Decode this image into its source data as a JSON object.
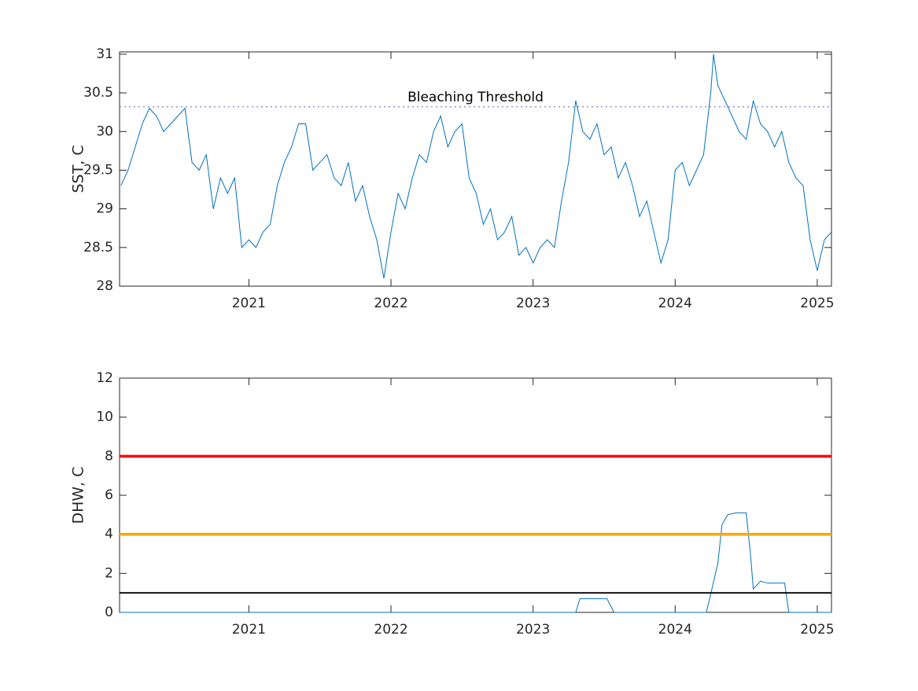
{
  "chart_data": [
    {
      "type": "line",
      "ylabel": "SST, C",
      "xlim": [
        2020.09,
        2025.1
      ],
      "xticks": [
        2021,
        2022,
        2023,
        2024,
        2025
      ],
      "ylim": [
        28,
        31.03
      ],
      "yticks": [
        28,
        28.5,
        29,
        29.5,
        30,
        30.5,
        31
      ],
      "threshold": {
        "value": 30.32,
        "label": "Bleaching Threshold",
        "color": "#7e6fb5"
      },
      "series": [
        {
          "color": "#0072bd",
          "x": [
            2020.1,
            2020.15,
            2020.2,
            2020.25,
            2020.3,
            2020.35,
            2020.4,
            2020.45,
            2020.5,
            2020.55,
            2020.6,
            2020.65,
            2020.7,
            2020.75,
            2020.8,
            2020.85,
            2020.9,
            2020.95,
            2021.0,
            2021.05,
            2021.1,
            2021.15,
            2021.2,
            2021.25,
            2021.3,
            2021.35,
            2021.4,
            2021.45,
            2021.5,
            2021.55,
            2021.6,
            2021.65,
            2021.7,
            2021.75,
            2021.8,
            2021.85,
            2021.9,
            2021.95,
            2022.0,
            2022.05,
            2022.1,
            2022.15,
            2022.2,
            2022.25,
            2022.3,
            2022.35,
            2022.4,
            2022.45,
            2022.5,
            2022.55,
            2022.6,
            2022.65,
            2022.7,
            2022.75,
            2022.8,
            2022.85,
            2022.9,
            2022.95,
            2023.0,
            2023.05,
            2023.1,
            2023.15,
            2023.2,
            2023.25,
            2023.3,
            2023.35,
            2023.4,
            2023.45,
            2023.5,
            2023.55,
            2023.6,
            2023.65,
            2023.7,
            2023.75,
            2023.8,
            2023.85,
            2023.9,
            2023.95,
            2024.0,
            2024.05,
            2024.1,
            2024.15,
            2024.2,
            2024.25,
            2024.27,
            2024.3,
            2024.35,
            2024.4,
            2024.45,
            2024.5,
            2024.55,
            2024.6,
            2024.65,
            2024.7,
            2024.75,
            2024.8,
            2024.85,
            2024.9,
            2024.95,
            2025.0,
            2025.05,
            2025.1
          ],
          "values": [
            29.3,
            29.5,
            29.8,
            30.1,
            30.3,
            30.2,
            30.0,
            30.1,
            30.2,
            30.3,
            29.6,
            29.5,
            29.7,
            29.0,
            29.4,
            29.2,
            29.4,
            28.5,
            28.6,
            28.5,
            28.7,
            28.8,
            29.3,
            29.6,
            29.8,
            30.1,
            30.1,
            29.5,
            29.6,
            29.7,
            29.4,
            29.3,
            29.6,
            29.1,
            29.3,
            28.9,
            28.6,
            28.1,
            28.7,
            29.2,
            29.0,
            29.4,
            29.7,
            29.6,
            30.0,
            30.2,
            29.8,
            30.0,
            30.1,
            29.4,
            29.2,
            28.8,
            29.0,
            28.6,
            28.7,
            28.9,
            28.4,
            28.5,
            28.3,
            28.5,
            28.6,
            28.5,
            29.1,
            29.6,
            30.4,
            30.0,
            29.9,
            30.1,
            29.7,
            29.8,
            29.4,
            29.6,
            29.3,
            28.9,
            29.1,
            28.7,
            28.3,
            28.6,
            29.5,
            29.6,
            29.3,
            29.5,
            29.7,
            30.5,
            31.0,
            30.6,
            30.4,
            30.2,
            30.0,
            29.9,
            30.4,
            30.1,
            30.0,
            29.8,
            30.0,
            29.6,
            29.4,
            29.3,
            28.6,
            28.2,
            28.6,
            28.7
          ]
        }
      ]
    },
    {
      "type": "line",
      "ylabel": "DHW, C",
      "xlim": [
        2020.09,
        2025.1
      ],
      "xticks": [
        2021,
        2022,
        2023,
        2024,
        2025
      ],
      "ylim": [
        0,
        12
      ],
      "yticks": [
        0,
        2,
        4,
        6,
        8,
        10,
        12
      ],
      "hlines": [
        {
          "value": 8,
          "color": "#ff0000"
        },
        {
          "value": 4,
          "color": "#ffa500"
        },
        {
          "value": 1,
          "color": "#000000"
        }
      ],
      "series": [
        {
          "color": "#0072bd",
          "x": [
            2020.09,
            2023.3,
            2023.33,
            2023.52,
            2023.57,
            2024.22,
            2024.3,
            2024.33,
            2024.37,
            2024.43,
            2024.5,
            2024.53,
            2024.55,
            2024.6,
            2024.65,
            2024.77,
            2024.8,
            2025.1
          ],
          "values": [
            0,
            0,
            0.7,
            0.7,
            0,
            0,
            2.5,
            4.5,
            5.0,
            5.1,
            5.1,
            3,
            1.2,
            1.6,
            1.5,
            1.5,
            0,
            0
          ]
        }
      ]
    }
  ]
}
